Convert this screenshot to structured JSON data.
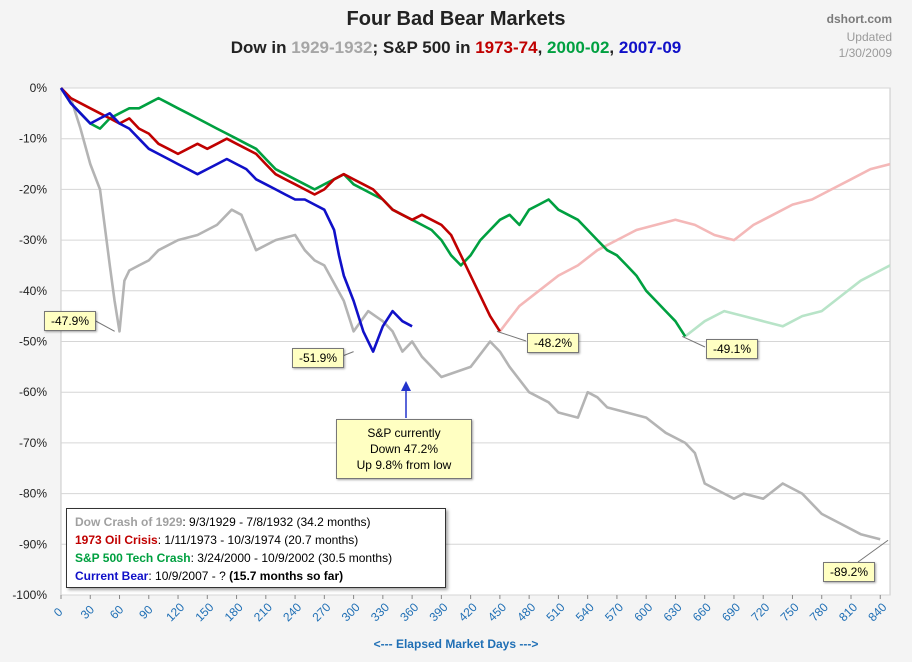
{
  "chart_data": {
    "type": "line",
    "title": "Four Bad Bear Markets",
    "subtitle_parts": [
      {
        "text": "Dow in ",
        "color": "#222222"
      },
      {
        "text": "1929-1932",
        "color": "#a6a6a6"
      },
      {
        "text": "; S&P 500 in ",
        "color": "#222222"
      },
      {
        "text": "1973-74",
        "color": "#c00000"
      },
      {
        "text": ", ",
        "color": "#222222"
      },
      {
        "text": "2000-02",
        "color": "#00a040"
      },
      {
        "text": ", ",
        "color": "#222222"
      },
      {
        "text": "2007-09",
        "color": "#1010c8"
      }
    ],
    "source": "dshort.com",
    "updated_label": "Updated",
    "updated_date": "1/30/2009",
    "xlabel": "<--- Elapsed Market Days --->",
    "xlim": [
      0,
      850
    ],
    "ylim": [
      -100,
      0
    ],
    "x_ticks": [
      0,
      30,
      60,
      90,
      120,
      150,
      180,
      210,
      240,
      270,
      300,
      330,
      360,
      390,
      420,
      450,
      480,
      510,
      540,
      570,
      600,
      630,
      660,
      690,
      720,
      750,
      780,
      810,
      840
    ],
    "y_ticks": [
      0,
      -10,
      -20,
      -30,
      -40,
      -50,
      -60,
      -70,
      -80,
      -90,
      -100
    ],
    "y_tick_labels": [
      "0%",
      "-10%",
      "-20%",
      "-30%",
      "-40%",
      "-50%",
      "-60%",
      "-70%",
      "-80%",
      "-90%",
      "-100%"
    ],
    "grid": true,
    "series": [
      {
        "name": "Dow Crash of 1929",
        "color": "#b4b4b4",
        "x": [
          0,
          10,
          20,
          30,
          40,
          50,
          55,
          60,
          65,
          70,
          80,
          90,
          100,
          120,
          140,
          160,
          175,
          185,
          200,
          220,
          240,
          250,
          260,
          270,
          290,
          300,
          315,
          330,
          340,
          350,
          360,
          370,
          390,
          420,
          440,
          450,
          460,
          480,
          500,
          510,
          530,
          540,
          550,
          560,
          580,
          600,
          620,
          640,
          650,
          660,
          680,
          690,
          700,
          720,
          740,
          760,
          780,
          800,
          820,
          840
        ],
        "y": [
          0,
          -2,
          -8,
          -15,
          -20,
          -35,
          -42,
          -48,
          -38,
          -36,
          -35,
          -34,
          -32,
          -30,
          -29,
          -27,
          -24,
          -25,
          -32,
          -30,
          -29,
          -32,
          -34,
          -35,
          -42,
          -48,
          -44,
          -46,
          -48,
          -52,
          -50,
          -53,
          -57,
          -55,
          -50,
          -52,
          -55,
          -60,
          -62,
          -64,
          -65,
          -60,
          -61,
          -63,
          -64,
          -65,
          -68,
          -70,
          -72,
          -78,
          -80,
          -81,
          -80,
          -81,
          -78,
          -80,
          -84,
          -86,
          -88,
          -89
        ]
      },
      {
        "name": "1973 Oil Crisis",
        "color": "#c00000",
        "x": [
          0,
          10,
          20,
          30,
          40,
          50,
          60,
          70,
          80,
          90,
          100,
          110,
          120,
          130,
          140,
          150,
          160,
          170,
          180,
          190,
          200,
          210,
          220,
          230,
          240,
          250,
          260,
          270,
          280,
          290,
          300,
          310,
          320,
          330,
          340,
          350,
          360,
          370,
          380,
          390,
          400,
          410,
          420,
          430,
          440,
          450
        ],
        "y": [
          0,
          -2,
          -3,
          -4,
          -5,
          -6,
          -7,
          -6,
          -8,
          -9,
          -11,
          -12,
          -13,
          -12,
          -11,
          -12,
          -11,
          -10,
          -11,
          -12,
          -13,
          -15,
          -17,
          -18,
          -19,
          -20,
          -21,
          -20,
          -18,
          -17,
          -18,
          -19,
          -20,
          -22,
          -24,
          -25,
          -26,
          -25,
          -26,
          -27,
          -29,
          -33,
          -37,
          -41,
          -45,
          -48
        ]
      },
      {
        "name": "S&P 500 Tech Crash",
        "color": "#00a040",
        "x": [
          0,
          10,
          20,
          30,
          40,
          50,
          60,
          70,
          80,
          90,
          100,
          110,
          120,
          130,
          140,
          150,
          160,
          170,
          180,
          190,
          200,
          210,
          220,
          230,
          240,
          250,
          260,
          270,
          280,
          290,
          300,
          310,
          320,
          330,
          340,
          350,
          360,
          370,
          380,
          390,
          400,
          410,
          420,
          430,
          440,
          450,
          460,
          470,
          480,
          490,
          500,
          510,
          520,
          530,
          540,
          550,
          560,
          570,
          580,
          590,
          600,
          610,
          620,
          630,
          640
        ],
        "y": [
          0,
          -3,
          -5,
          -7,
          -8,
          -6,
          -5,
          -4,
          -4,
          -3,
          -2,
          -3,
          -4,
          -5,
          -6,
          -7,
          -8,
          -9,
          -10,
          -11,
          -12,
          -14,
          -16,
          -17,
          -18,
          -19,
          -20,
          -19,
          -18,
          -17,
          -19,
          -20,
          -21,
          -22,
          -24,
          -25,
          -26,
          -27,
          -28,
          -30,
          -33,
          -35,
          -33,
          -30,
          -28,
          -26,
          -25,
          -27,
          -24,
          -23,
          -22,
          -24,
          -25,
          -26,
          -28,
          -30,
          -32,
          -33,
          -35,
          -37,
          -40,
          -42,
          -44,
          -46,
          -49
        ]
      },
      {
        "name": "Current Bear",
        "color": "#1010c8",
        "x": [
          0,
          10,
          20,
          30,
          40,
          50,
          60,
          70,
          80,
          90,
          100,
          110,
          120,
          130,
          140,
          150,
          160,
          170,
          180,
          190,
          200,
          210,
          220,
          230,
          240,
          250,
          260,
          270,
          280,
          285,
          290,
          300,
          310,
          320,
          330,
          340,
          350,
          360
        ],
        "y": [
          0,
          -3,
          -5,
          -7,
          -6,
          -5,
          -7,
          -8,
          -10,
          -12,
          -13,
          -14,
          -15,
          -16,
          -17,
          -16,
          -15,
          -14,
          -15,
          -16,
          -18,
          -19,
          -20,
          -21,
          -22,
          -22,
          -23,
          -24,
          -28,
          -33,
          -37,
          -42,
          -48,
          -52,
          -47,
          -44,
          -46,
          -47
        ]
      },
      {
        "name": "1973 continuation",
        "color": "#f4b8b8",
        "x": [
          450,
          470,
          490,
          510,
          530,
          550,
          570,
          590,
          610,
          630,
          650,
          670,
          690,
          710,
          730,
          750,
          770,
          790,
          810,
          830,
          850
        ],
        "y": [
          -48,
          -43,
          -40,
          -37,
          -35,
          -32,
          -30,
          -28,
          -27,
          -26,
          -27,
          -29,
          -30,
          -27,
          -25,
          -23,
          -22,
          -20,
          -18,
          -16,
          -15
        ]
      },
      {
        "name": "2000-02 continuation",
        "color": "#b8e4c8",
        "x": [
          640,
          660,
          680,
          700,
          720,
          740,
          760,
          780,
          800,
          820,
          840,
          850
        ],
        "y": [
          -49,
          -46,
          -44,
          -45,
          -46,
          -47,
          -45,
          -44,
          -41,
          -38,
          -36,
          -35
        ]
      }
    ],
    "annotations": [
      {
        "label": "-47.9%",
        "color": "#000000"
      },
      {
        "label": "-51.9%",
        "color": "#000000"
      },
      {
        "label": "-48.2%",
        "color": "#000000"
      },
      {
        "label": "-49.1%",
        "color": "#000000"
      },
      {
        "label": "-89.2%",
        "color": "#000000"
      }
    ],
    "note_lines": [
      "S&P currently",
      "Down 47.2%",
      "Up 9.8% from low"
    ],
    "legend": [
      {
        "name": "Dow Crash of 1929",
        "detail": ": 9/3/1929  - 7/8/1932  (34.2 months)",
        "color": "#a0a0a0"
      },
      {
        "name": "1973 Oil Crisis",
        "detail": ": 1/11/1973  - 10/3/1974  (20.7 months)",
        "color": "#c00000"
      },
      {
        "name": "S&P 500 Tech Crash",
        "detail": ":  3/24/2000  - 10/9/2002  (30.5 months)",
        "color": "#00a040"
      },
      {
        "name": "Current Bear",
        "detail": ": 10/9/2007  - ?  ",
        "extra": "(15.7 months so far)",
        "color": "#1010c8"
      }
    ]
  }
}
